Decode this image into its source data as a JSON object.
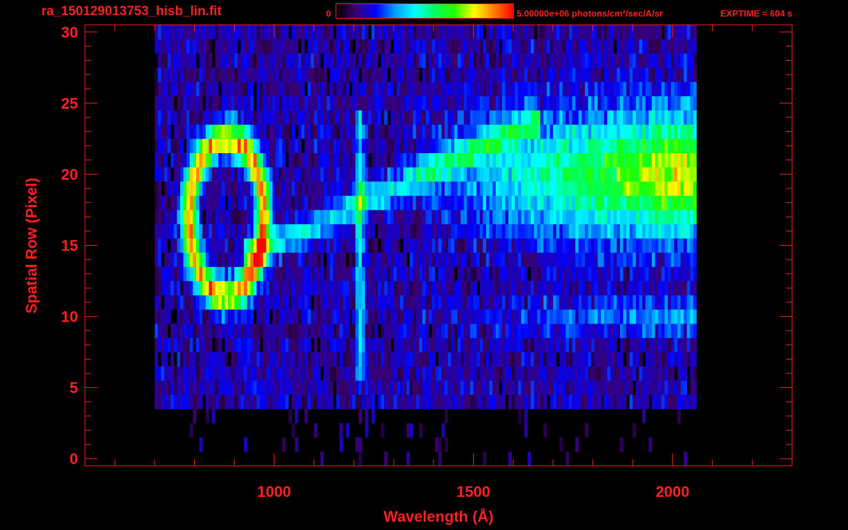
{
  "header": {
    "filename": "ra_150129013753_hisb_lin.fit",
    "colorbar_min": "0",
    "colorbar_max": "5.00000e+06 photons/cm²/sec/A/sr",
    "exptime": "EXPTIME = 604 s"
  },
  "colors": {
    "axis": "#ff2020",
    "colormap": [
      "#000000",
      "#3a0070",
      "#0000ff",
      "#00a0ff",
      "#00ffff",
      "#00ff60",
      "#20ff00",
      "#ffff00",
      "#ff8000",
      "#ff0000"
    ]
  },
  "chart_data": {
    "type": "heatmap",
    "title": "",
    "xlabel": "Wavelength (Å)",
    "ylabel": "Spatial Row (Pixel)",
    "xlim": [
      525,
      2300
    ],
    "ylim": [
      -0.5,
      30.5
    ],
    "xticks": [
      1000,
      1500,
      2000
    ],
    "yticks": [
      0,
      5,
      10,
      15,
      20,
      25,
      30
    ],
    "x_range_data": [
      700,
      2060
    ],
    "rows": 31,
    "colorbar_range": [
      0,
      5000000
    ],
    "color_scale": "linear",
    "features": [
      {
        "type": "emission_ring",
        "center_wavelength": 880,
        "center_row": 17,
        "half_width": 110,
        "half_height": 6.5
      },
      {
        "type": "vertical_line",
        "wavelength": 1216,
        "row_range": [
          6,
          24
        ]
      },
      {
        "type": "diagonal_band",
        "from": [
          920,
          14
        ],
        "to": [
          1600,
          23
        ]
      },
      {
        "type": "continuum_bright",
        "wavelength_range": [
          1500,
          2060
        ],
        "row_range": [
          15,
          23
        ],
        "peak_wavelength": 2000,
        "peak_row": 20
      }
    ]
  }
}
